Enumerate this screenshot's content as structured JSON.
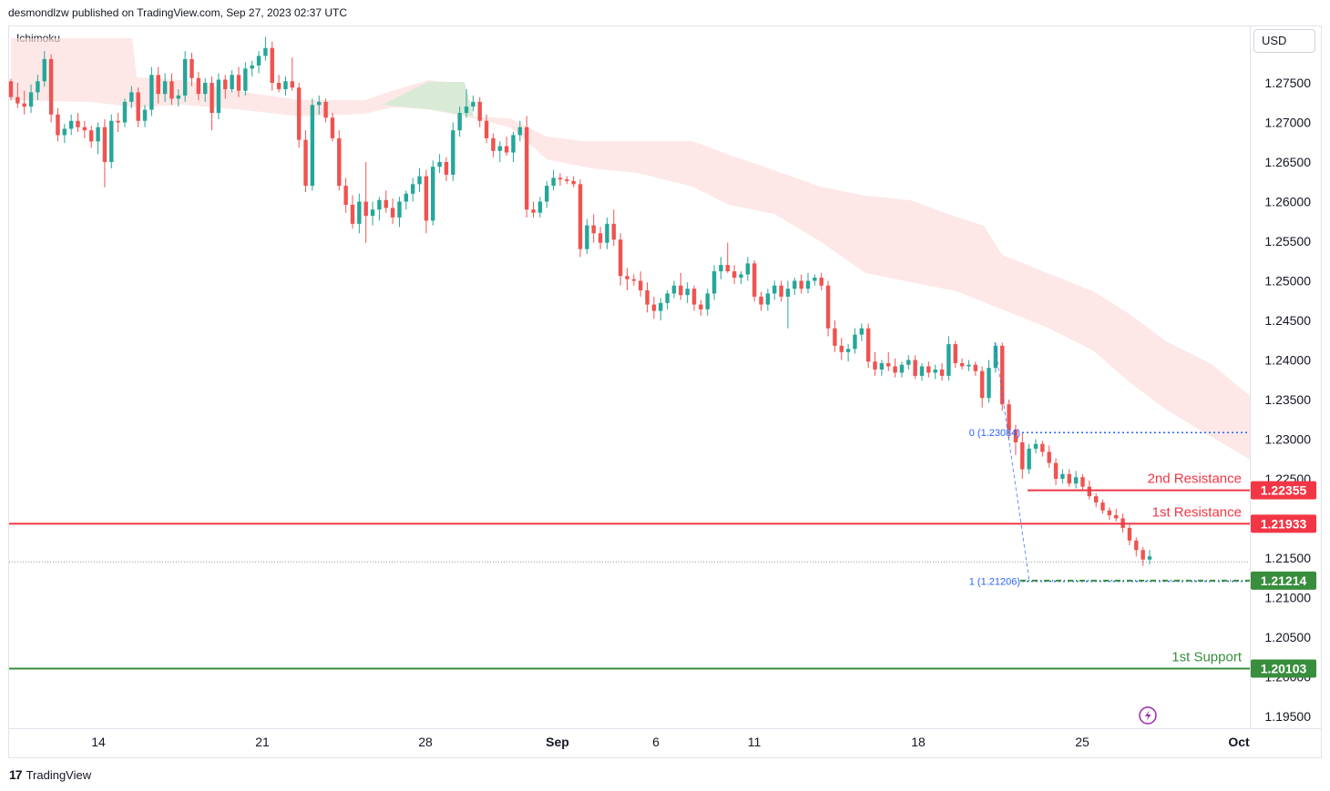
{
  "header": {
    "published": "desmondlzw published on TradingView.com, Sep 27, 2023 02:37 UTC"
  },
  "indicator": {
    "label": "Ichimoku"
  },
  "currency": {
    "label": "USD"
  },
  "footer": {
    "brand_mark": "17",
    "brand": "TradingView"
  },
  "colors": {
    "bull": "#26a69a",
    "bear": "#ef5350",
    "resistance": "#f23645",
    "support": "#388e3c",
    "fib": "#2962ff",
    "cloud_bear": "#fcdcda",
    "cloud_bull": "#cfead2"
  },
  "chart_data": {
    "type": "candlestick",
    "symbol_quote": "USD",
    "y_axis": {
      "ticks": [
        "1.27500",
        "1.27000",
        "1.26500",
        "1.26000",
        "1.25500",
        "1.25000",
        "1.24500",
        "1.24000",
        "1.23500",
        "1.23000",
        "1.22500",
        "1.21500",
        "1.21000",
        "1.20500",
        "1.20000",
        "1.19500"
      ],
      "range": [
        1.1935,
        1.2815
      ]
    },
    "x_axis": {
      "ticks": [
        "14",
        "21",
        "28",
        "Sep",
        "6",
        "11",
        "18",
        "25",
        "Oct"
      ]
    },
    "levels": [
      {
        "name": "2nd Resistance",
        "value": "1.22355",
        "price": 1.22355
      },
      {
        "name": "1st Resistance",
        "value": "1.21933",
        "price": 1.21933
      },
      {
        "name": "",
        "value": "1.21214",
        "price": 1.21214
      },
      {
        "name": "1st Support",
        "value": "1.20103",
        "price": 1.20103
      }
    ],
    "fibonacci": [
      {
        "label": "0 (1.23084)",
        "price": 1.23084
      },
      {
        "label": "1 (1.21206)",
        "price": 1.21206
      }
    ],
    "last_price": 1.2145,
    "candles": [
      [
        1.2752,
        1.2755,
        1.2728,
        1.2732
      ],
      [
        1.2732,
        1.275,
        1.2718,
        1.2724
      ],
      [
        1.2724,
        1.274,
        1.271,
        1.272
      ],
      [
        1.272,
        1.2748,
        1.2712,
        1.2738
      ],
      [
        1.2738,
        1.276,
        1.2728,
        1.2752
      ],
      [
        1.2752,
        1.279,
        1.2745,
        1.278
      ],
      [
        1.278,
        1.2786,
        1.27,
        1.271
      ],
      [
        1.271,
        1.2718,
        1.2676,
        1.2684
      ],
      [
        1.2684,
        1.2698,
        1.2674,
        1.2692
      ],
      [
        1.2692,
        1.271,
        1.2684,
        1.2702
      ],
      [
        1.2702,
        1.2712,
        1.2688,
        1.2694
      ],
      [
        1.2694,
        1.2702,
        1.268,
        1.269
      ],
      [
        1.269,
        1.2696,
        1.2668,
        1.2676
      ],
      [
        1.2676,
        1.27,
        1.266,
        1.2694
      ],
      [
        1.2694,
        1.2704,
        1.2618,
        1.265
      ],
      [
        1.265,
        1.271,
        1.2642,
        1.2702
      ],
      [
        1.2702,
        1.2712,
        1.2688,
        1.27
      ],
      [
        1.27,
        1.273,
        1.2694,
        1.2726
      ],
      [
        1.2726,
        1.2746,
        1.2718,
        1.2738
      ],
      [
        1.2738,
        1.2744,
        1.2694,
        1.2702
      ],
      [
        1.2702,
        1.2722,
        1.2694,
        1.2716
      ],
      [
        1.2716,
        1.277,
        1.2708,
        1.276
      ],
      [
        1.276,
        1.277,
        1.2724,
        1.2736
      ],
      [
        1.2736,
        1.2762,
        1.2726,
        1.2752
      ],
      [
        1.2752,
        1.2762,
        1.2722,
        1.273
      ],
      [
        1.273,
        1.2742,
        1.272,
        1.2734
      ],
      [
        1.2734,
        1.279,
        1.2726,
        1.278
      ],
      [
        1.278,
        1.2788,
        1.2746,
        1.2756
      ],
      [
        1.2756,
        1.2764,
        1.2728,
        1.2736
      ],
      [
        1.2736,
        1.2756,
        1.2726,
        1.275
      ],
      [
        1.275,
        1.2758,
        1.269,
        1.2712
      ],
      [
        1.2712,
        1.2762,
        1.2704,
        1.2754
      ],
      [
        1.2754,
        1.276,
        1.273,
        1.2742
      ],
      [
        1.2742,
        1.2766,
        1.2738,
        1.276
      ],
      [
        1.276,
        1.277,
        1.2732,
        1.274
      ],
      [
        1.274,
        1.2776,
        1.2734,
        1.2768
      ],
      [
        1.2768,
        1.2778,
        1.2758,
        1.2772
      ],
      [
        1.2772,
        1.279,
        1.2762,
        1.2784
      ],
      [
        1.2784,
        1.2808,
        1.2778,
        1.2794
      ],
      [
        1.2794,
        1.2802,
        1.274,
        1.275
      ],
      [
        1.275,
        1.276,
        1.2738,
        1.2742
      ],
      [
        1.2742,
        1.2758,
        1.2734,
        1.2752
      ],
      [
        1.2752,
        1.2782,
        1.274,
        1.2744
      ],
      [
        1.2744,
        1.275,
        1.2668,
        1.2678
      ],
      [
        1.2678,
        1.269,
        1.2612,
        1.262
      ],
      [
        1.262,
        1.273,
        1.2614,
        1.2722
      ],
      [
        1.2722,
        1.2734,
        1.271,
        1.2726
      ],
      [
        1.2726,
        1.273,
        1.27,
        1.2706
      ],
      [
        1.2706,
        1.2712,
        1.2676,
        1.268
      ],
      [
        1.268,
        1.269,
        1.2614,
        1.262
      ],
      [
        1.262,
        1.263,
        1.2586,
        1.2596
      ],
      [
        1.2596,
        1.2608,
        1.2566,
        1.2572
      ],
      [
        1.2572,
        1.261,
        1.256,
        1.26
      ],
      [
        1.26,
        1.265,
        1.2548,
        1.2582
      ],
      [
        1.2582,
        1.26,
        1.257,
        1.259
      ],
      [
        1.259,
        1.2606,
        1.2576,
        1.2602
      ],
      [
        1.2602,
        1.2614,
        1.2586,
        1.2592
      ],
      [
        1.2592,
        1.2604,
        1.2572,
        1.258
      ],
      [
        1.258,
        1.2606,
        1.2568,
        1.26
      ],
      [
        1.26,
        1.2614,
        1.259,
        1.261
      ],
      [
        1.261,
        1.263,
        1.26,
        1.2622
      ],
      [
        1.2622,
        1.2642,
        1.2612,
        1.2632
      ],
      [
        1.2632,
        1.264,
        1.256,
        1.2576
      ],
      [
        1.2576,
        1.2652,
        1.257,
        1.2644
      ],
      [
        1.2644,
        1.266,
        1.2636,
        1.265
      ],
      [
        1.265,
        1.2656,
        1.2626,
        1.2634
      ],
      [
        1.2634,
        1.27,
        1.2626,
        1.269
      ],
      [
        1.269,
        1.272,
        1.2682,
        1.2712
      ],
      [
        1.2712,
        1.2742,
        1.2706,
        1.272
      ],
      [
        1.272,
        1.2734,
        1.2714,
        1.2726
      ],
      [
        1.2726,
        1.2732,
        1.2694,
        1.2702
      ],
      [
        1.2702,
        1.271,
        1.2674,
        1.268
      ],
      [
        1.268,
        1.2686,
        1.2656,
        1.2664
      ],
      [
        1.2664,
        1.2676,
        1.265,
        1.267
      ],
      [
        1.267,
        1.2682,
        1.2658,
        1.2662
      ],
      [
        1.2662,
        1.2688,
        1.265,
        1.2684
      ],
      [
        1.2684,
        1.2702,
        1.2676,
        1.2694
      ],
      [
        1.2694,
        1.2708,
        1.258,
        1.259
      ],
      [
        1.259,
        1.26,
        1.258,
        1.2586
      ],
      [
        1.2586,
        1.2606,
        1.258,
        1.26
      ],
      [
        1.26,
        1.2626,
        1.2592,
        1.262
      ],
      [
        1.262,
        1.264,
        1.2614,
        1.263
      ],
      [
        1.263,
        1.2636,
        1.262,
        1.2628
      ],
      [
        1.2628,
        1.2632,
        1.2622,
        1.2626
      ],
      [
        1.2626,
        1.2632,
        1.2618,
        1.2622
      ],
      [
        1.2622,
        1.2628,
        1.253,
        1.254
      ],
      [
        1.254,
        1.2578,
        1.2534,
        1.257
      ],
      [
        1.257,
        1.2584,
        1.2548,
        1.256
      ],
      [
        1.256,
        1.2568,
        1.254,
        1.2548
      ],
      [
        1.2548,
        1.258,
        1.254,
        1.2572
      ],
      [
        1.2572,
        1.259,
        1.2544,
        1.2552
      ],
      [
        1.2552,
        1.256,
        1.2494,
        1.2506
      ],
      [
        1.2506,
        1.2516,
        1.2488,
        1.2502
      ],
      [
        1.2502,
        1.2508,
        1.2494,
        1.25
      ],
      [
        1.25,
        1.2512,
        1.248,
        1.2488
      ],
      [
        1.2488,
        1.2498,
        1.246,
        1.247
      ],
      [
        1.247,
        1.248,
        1.2452,
        1.2462
      ],
      [
        1.2462,
        1.2478,
        1.245,
        1.2472
      ],
      [
        1.2472,
        1.2488,
        1.2464,
        1.2484
      ],
      [
        1.2484,
        1.25,
        1.2478,
        1.2494
      ],
      [
        1.2494,
        1.251,
        1.2476,
        1.2482
      ],
      [
        1.2482,
        1.2498,
        1.2472,
        1.249
      ],
      [
        1.249,
        1.2494,
        1.2462,
        1.247
      ],
      [
        1.247,
        1.2476,
        1.2456,
        1.2464
      ],
      [
        1.2464,
        1.249,
        1.2456,
        1.2484
      ],
      [
        1.2484,
        1.252,
        1.2476,
        1.2512
      ],
      [
        1.2512,
        1.253,
        1.2502,
        1.252
      ],
      [
        1.252,
        1.2548,
        1.251,
        1.2512
      ],
      [
        1.2512,
        1.252,
        1.2496,
        1.2504
      ],
      [
        1.2504,
        1.2512,
        1.2496,
        1.2508
      ],
      [
        1.2508,
        1.253,
        1.25,
        1.2522
      ],
      [
        1.2522,
        1.2526,
        1.2474,
        1.248
      ],
      [
        1.248,
        1.2486,
        1.2462,
        1.247
      ],
      [
        1.247,
        1.249,
        1.2462,
        1.2484
      ],
      [
        1.2484,
        1.25,
        1.2476,
        1.2494
      ],
      [
        1.2494,
        1.25,
        1.2474,
        1.248
      ],
      [
        1.248,
        1.25,
        1.244,
        1.249
      ],
      [
        1.249,
        1.2504,
        1.2482,
        1.25
      ],
      [
        1.25,
        1.2508,
        1.2484,
        1.249
      ],
      [
        1.249,
        1.251,
        1.2484,
        1.25
      ],
      [
        1.25,
        1.2508,
        1.2494,
        1.2504
      ],
      [
        1.2504,
        1.251,
        1.2488,
        1.2494
      ],
      [
        1.2494,
        1.25,
        1.243,
        1.244
      ],
      [
        1.244,
        1.245,
        1.241,
        1.2418
      ],
      [
        1.2418,
        1.2428,
        1.24,
        1.241
      ],
      [
        1.241,
        1.242,
        1.2398,
        1.2414
      ],
      [
        1.2414,
        1.244,
        1.2408,
        1.2432
      ],
      [
        1.2432,
        1.2446,
        1.2424,
        1.244
      ],
      [
        1.244,
        1.2446,
        1.239,
        1.2398
      ],
      [
        1.2398,
        1.241,
        1.238,
        1.2388
      ],
      [
        1.2388,
        1.24,
        1.238,
        1.2396
      ],
      [
        1.2396,
        1.241,
        1.2386,
        1.2392
      ],
      [
        1.2392,
        1.2402,
        1.2378,
        1.2384
      ],
      [
        1.2384,
        1.2398,
        1.2378,
        1.2394
      ],
      [
        1.2394,
        1.2406,
        1.2388,
        1.24
      ],
      [
        1.24,
        1.2406,
        1.2376,
        1.238
      ],
      [
        1.238,
        1.2396,
        1.2374,
        1.2392
      ],
      [
        1.2392,
        1.2398,
        1.2378,
        1.2384
      ],
      [
        1.2384,
        1.2394,
        1.2376,
        1.2388
      ],
      [
        1.2388,
        1.2396,
        1.2374,
        1.238
      ],
      [
        1.238,
        1.243,
        1.2374,
        1.242
      ],
      [
        1.242,
        1.2424,
        1.239,
        1.2396
      ],
      [
        1.2396,
        1.2402,
        1.2388,
        1.2392
      ],
      [
        1.2392,
        1.24,
        1.2386,
        1.2394
      ],
      [
        1.2394,
        1.2398,
        1.238,
        1.2386
      ],
      [
        1.2386,
        1.2392,
        1.234,
        1.2352
      ],
      [
        1.2352,
        1.24,
        1.2346,
        1.239
      ],
      [
        1.239,
        1.2422,
        1.2384,
        1.2418
      ],
      [
        1.2418,
        1.2422,
        1.2336,
        1.2344
      ],
      [
        1.2344,
        1.235,
        1.23,
        1.2312
      ],
      [
        1.2312,
        1.2318,
        1.228,
        1.2296
      ],
      [
        1.2296,
        1.2308,
        1.225,
        1.2262
      ],
      [
        1.2262,
        1.2294,
        1.2256,
        1.2288
      ],
      [
        1.2288,
        1.23,
        1.2282,
        1.2294
      ],
      [
        1.2294,
        1.2298,
        1.2278,
        1.2284
      ],
      [
        1.2284,
        1.2292,
        1.2264,
        1.227
      ],
      [
        1.227,
        1.2276,
        1.2242,
        1.225
      ],
      [
        1.225,
        1.2262,
        1.2244,
        1.2256
      ],
      [
        1.2256,
        1.2262,
        1.224,
        1.2244
      ],
      [
        1.2244,
        1.226,
        1.2238,
        1.2252
      ],
      [
        1.2252,
        1.2256,
        1.2236,
        1.224
      ],
      [
        1.224,
        1.2248,
        1.2224,
        1.2228
      ],
      [
        1.2228,
        1.2232,
        1.2214,
        1.222
      ],
      [
        1.222,
        1.2224,
        1.2206,
        1.221
      ],
      [
        1.221,
        1.2214,
        1.2198,
        1.2204
      ],
      [
        1.2204,
        1.2212,
        1.2196,
        1.22
      ],
      [
        1.22,
        1.2206,
        1.2182,
        1.2188
      ],
      [
        1.2188,
        1.2192,
        1.2166,
        1.2172
      ],
      [
        1.2172,
        1.2176,
        1.2152,
        1.216
      ],
      [
        1.216,
        1.2164,
        1.214,
        1.2148
      ],
      [
        1.2148,
        1.216,
        1.2142,
        1.2152
      ]
    ]
  }
}
